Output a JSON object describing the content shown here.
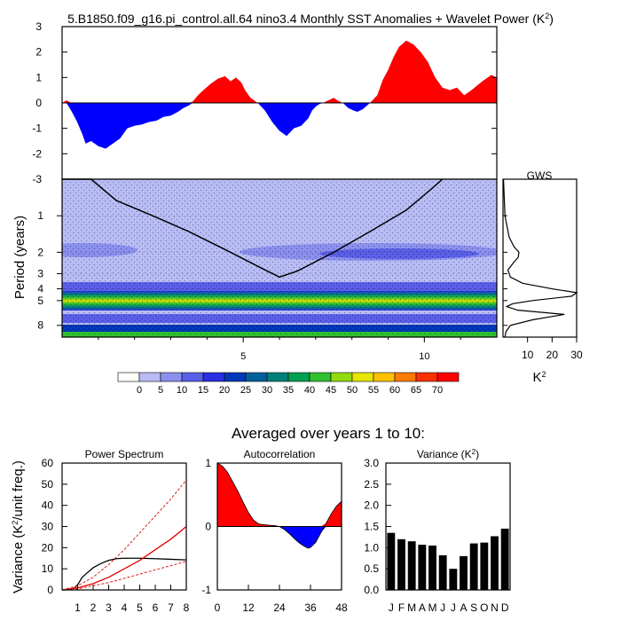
{
  "colors": {
    "positive": "#ff0000",
    "negative": "#0000ff",
    "axis": "#000000",
    "spectrum": "#000000",
    "rednoise": "#e00000",
    "bg": "#ffffff"
  },
  "chart_data": [
    {
      "id": "sst",
      "type": "area",
      "title": "5.B1850.f09_g16.pi_control.all.64 nino3.4 Monthly SST Anomalies + Wavelet Power (K",
      "title_sup": "2",
      "title_end": ")",
      "xlim": [
        0,
        12
      ],
      "ylim": [
        -3,
        3
      ],
      "yticks": [
        3,
        2,
        1,
        0,
        -1,
        -2,
        -3
      ],
      "x": [
        0,
        0.12,
        0.25,
        0.4,
        0.55,
        0.65,
        0.8,
        1.0,
        1.2,
        1.4,
        1.6,
        1.8,
        2.0,
        2.2,
        2.4,
        2.6,
        2.8,
        3.0,
        3.2,
        3.35,
        3.5,
        3.6,
        3.75,
        3.9,
        4.1,
        4.3,
        4.5,
        4.65,
        4.8,
        4.95,
        5.05,
        5.2,
        5.4,
        5.6,
        5.8,
        6.0,
        6.2,
        6.4,
        6.6,
        6.8,
        6.9,
        7.0,
        7.1,
        7.2,
        7.35,
        7.5,
        7.6,
        7.75,
        7.9,
        8.05,
        8.15,
        8.3,
        8.5,
        8.7,
        8.85,
        9.0,
        9.15,
        9.3,
        9.5,
        9.7,
        9.9,
        10.1,
        10.3,
        10.5,
        10.7,
        10.9,
        11.1,
        11.3,
        11.6,
        11.85,
        12.0
      ],
      "values": [
        0,
        0.1,
        -0.3,
        -0.7,
        -1.2,
        -1.6,
        -1.5,
        -1.7,
        -1.8,
        -1.6,
        -1.4,
        -1.0,
        -0.9,
        -0.85,
        -0.75,
        -0.7,
        -0.55,
        -0.5,
        -0.35,
        -0.2,
        -0.1,
        0.05,
        0.3,
        0.5,
        0.75,
        0.95,
        1.05,
        0.85,
        1.0,
        0.8,
        0.5,
        0.2,
        0.0,
        -0.3,
        -0.75,
        -1.1,
        -1.3,
        -1.0,
        -0.9,
        -0.6,
        -0.3,
        -0.15,
        -0.05,
        0.0,
        0.1,
        0.2,
        0.1,
        0.0,
        -0.2,
        -0.3,
        -0.35,
        -0.25,
        0.0,
        0.3,
        0.9,
        1.3,
        1.8,
        2.2,
        2.45,
        2.3,
        2.0,
        1.6,
        1.0,
        0.6,
        0.5,
        0.6,
        0.3,
        0.5,
        0.85,
        1.1,
        1.0
      ]
    },
    {
      "id": "wavelet",
      "type": "heatmap",
      "ylabel": "Period (years)",
      "xlim": [
        0,
        12
      ],
      "xticks": [
        5,
        10
      ],
      "yticks": [
        1,
        2,
        3,
        4,
        5,
        8
      ],
      "ylim": [
        0.5,
        10
      ],
      "coi_x": [
        0,
        0.8,
        1.5,
        2.5,
        3.5,
        4.5,
        5.5,
        6,
        6.5,
        7.5,
        8.5,
        9.5,
        10.2,
        10.5
      ],
      "coi_y": [
        0.5,
        0.5,
        0.75,
        1.0,
        1.35,
        1.9,
        2.7,
        3.2,
        2.85,
        2.0,
        1.35,
        0.9,
        0.6,
        0.5
      ],
      "colorbar_labels": [
        "0",
        "5",
        "10",
        "15",
        "20",
        "25",
        "30",
        "35",
        "40",
        "45",
        "50",
        "55",
        "60",
        "65",
        "70"
      ],
      "colorbar_colors": [
        "#ffffff",
        "#b8bcf5",
        "#8b90ee",
        "#5a5fe8",
        "#2a30e0",
        "#0038b8",
        "#00609a",
        "#007f7a",
        "#00a050",
        "#30c030",
        "#90dc10",
        "#e6e600",
        "#ffc000",
        "#ff7a00",
        "#ff3000",
        "#ff0000"
      ]
    },
    {
      "id": "gws",
      "type": "line",
      "title": "GWS",
      "xlabel": "K",
      "xlabel_sup": "2",
      "xlim": [
        0,
        30
      ],
      "xticks": [
        10,
        20,
        30
      ],
      "periods": [
        0.5,
        1.0,
        1.5,
        1.8,
        2.0,
        2.2,
        2.4,
        2.8,
        3.2,
        3.6,
        4.0,
        4.3,
        4.6,
        5.0,
        5.3,
        5.6,
        6.0,
        6.5,
        7.2,
        8.0,
        9.0,
        10.0
      ],
      "values": [
        0.2,
        0.8,
        2.5,
        4.5,
        6.5,
        6.2,
        4.5,
        2.0,
        3.0,
        8.0,
        20.0,
        30.0,
        28.0,
        12.0,
        4.0,
        1.5,
        6.0,
        25.0,
        12.0,
        3.0,
        1.2,
        0.8
      ]
    },
    {
      "id": "heading",
      "text": "Averaged over years 1 to 10:"
    },
    {
      "id": "power",
      "type": "line",
      "title": "Power Spectrum",
      "ylabel": "Variance (K",
      "ylabel_sup": "2",
      "ylabel_end": "/unit freq.)",
      "xlim": [
        0,
        8
      ],
      "ylim": [
        0,
        60
      ],
      "xticks": [
        1,
        2,
        3,
        4,
        5,
        6,
        7,
        8
      ],
      "yticks": [
        0,
        10,
        20,
        30,
        40,
        50,
        60
      ],
      "series": [
        {
          "name": "power",
          "x": [
            0,
            0.5,
            0.8,
            1.0,
            1.3,
            1.6,
            2.0,
            2.5,
            3.0,
            3.5,
            4.0,
            5.0,
            6.0,
            7.0,
            8.0
          ],
          "values": [
            0,
            0.3,
            1.0,
            2.5,
            6.0,
            8.0,
            10.5,
            12.5,
            14.0,
            14.8,
            15.0,
            15.0,
            14.8,
            14.5,
            14.2
          ]
        },
        {
          "name": "red-noise",
          "x": [
            0,
            1,
            2,
            3,
            4,
            5,
            6,
            7,
            8
          ],
          "values": [
            0,
            1,
            3,
            6,
            10,
            14,
            19,
            24,
            30
          ]
        },
        {
          "name": "upper-95",
          "x": [
            0,
            1,
            2,
            3,
            4,
            5,
            6,
            7,
            8
          ],
          "values": [
            0,
            2,
            6,
            12,
            19,
            27,
            35,
            43,
            52
          ]
        },
        {
          "name": "lower-5",
          "x": [
            0,
            1,
            2,
            3,
            4,
            5,
            6,
            7,
            8
          ],
          "values": [
            0,
            0.5,
            2,
            3.5,
            5.5,
            7.5,
            9.5,
            11.5,
            13.5
          ]
        }
      ]
    },
    {
      "id": "autocorr",
      "type": "area",
      "title": "Autocorrelation",
      "xlim": [
        0,
        48
      ],
      "ylim": [
        -1,
        1
      ],
      "xticks": [
        0,
        12,
        24,
        36,
        48
      ],
      "yticks": [
        1,
        0,
        -1
      ],
      "x": [
        0,
        2,
        4,
        6,
        8,
        10,
        12,
        14,
        16,
        18,
        20,
        22,
        24,
        26,
        28,
        30,
        32,
        34,
        35,
        36,
        38,
        40,
        42,
        44,
        46,
        48
      ],
      "values": [
        1.0,
        0.95,
        0.85,
        0.7,
        0.55,
        0.38,
        0.22,
        0.1,
        0.04,
        0.03,
        0.02,
        0.015,
        0.0,
        -0.05,
        -0.12,
        -0.2,
        -0.27,
        -0.32,
        -0.34,
        -0.33,
        -0.25,
        -0.1,
        0.05,
        0.2,
        0.32,
        0.4
      ]
    },
    {
      "id": "variance",
      "type": "bar",
      "title": "Variance (K",
      "title_sup": "2",
      "title_end": ")",
      "categories": [
        "J",
        "F",
        "M",
        "A",
        "M",
        "J",
        "J",
        "A",
        "S",
        "O",
        "N",
        "D"
      ],
      "values": [
        1.35,
        1.2,
        1.15,
        1.07,
        1.05,
        0.82,
        0.5,
        0.8,
        1.1,
        1.12,
        1.27,
        1.45
      ],
      "ylim": [
        0,
        3
      ],
      "yticks": [
        "0.0",
        "0.5",
        "1.0",
        "1.5",
        "2.0",
        "2.5",
        "3.0"
      ]
    }
  ]
}
